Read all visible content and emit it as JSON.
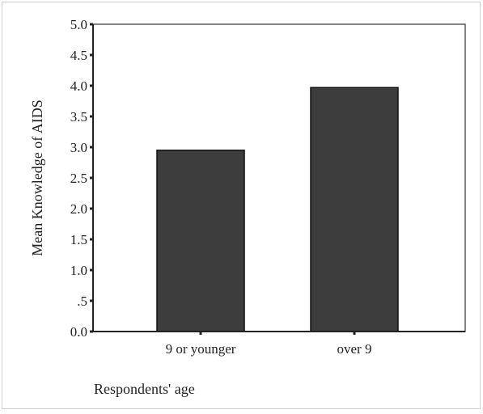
{
  "chart_data": {
    "type": "bar",
    "categories": [
      "9 or younger",
      "over 9"
    ],
    "values": [
      2.95,
      3.97
    ],
    "ylabel": "Mean Knowledge of AIDS",
    "xlabel": "Respondents' age",
    "ylim": [
      0,
      5
    ],
    "yticks": [
      {
        "value": 0,
        "label": "0.0"
      },
      {
        "value": 0.5,
        "label": ".5"
      },
      {
        "value": 1,
        "label": "1.0"
      },
      {
        "value": 1.5,
        "label": "1.5"
      },
      {
        "value": 2,
        "label": "2.0"
      },
      {
        "value": 2.5,
        "label": "2.5"
      },
      {
        "value": 3,
        "label": "3.0"
      },
      {
        "value": 3.5,
        "label": "3.5"
      },
      {
        "value": 4,
        "label": "4.0"
      },
      {
        "value": 4.5,
        "label": "4.5"
      },
      {
        "value": 5,
        "label": "5.0"
      }
    ],
    "grid": false,
    "bar_color": "#3d3d3d"
  }
}
